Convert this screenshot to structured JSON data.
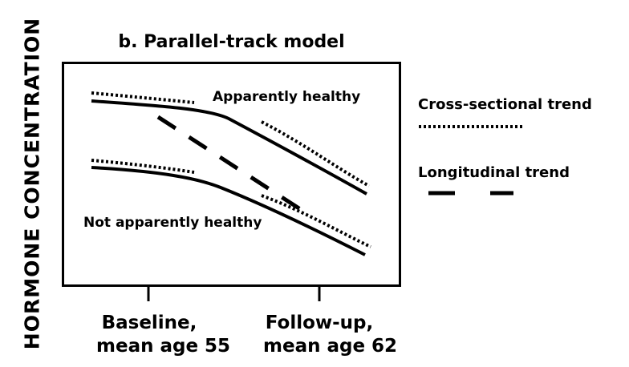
{
  "axis": {
    "y_label": "HORMONE CONCENTRATION",
    "x_tick_1_line1": "Baseline,",
    "x_tick_1_line2": "mean age 55",
    "x_tick_2_line1": "Follow-up,",
    "x_tick_2_line2": "mean age 62"
  },
  "diagram": {
    "title": "b. Parallel-track model",
    "upper_group_label": "Apparently healthy",
    "lower_group_label": "Not apparently healthy"
  },
  "legend": {
    "cross_sectional_label": "Cross-sectional trend",
    "longitudinal_label": "Longitudinal trend"
  },
  "colors": {
    "stroke": "#000000"
  }
}
